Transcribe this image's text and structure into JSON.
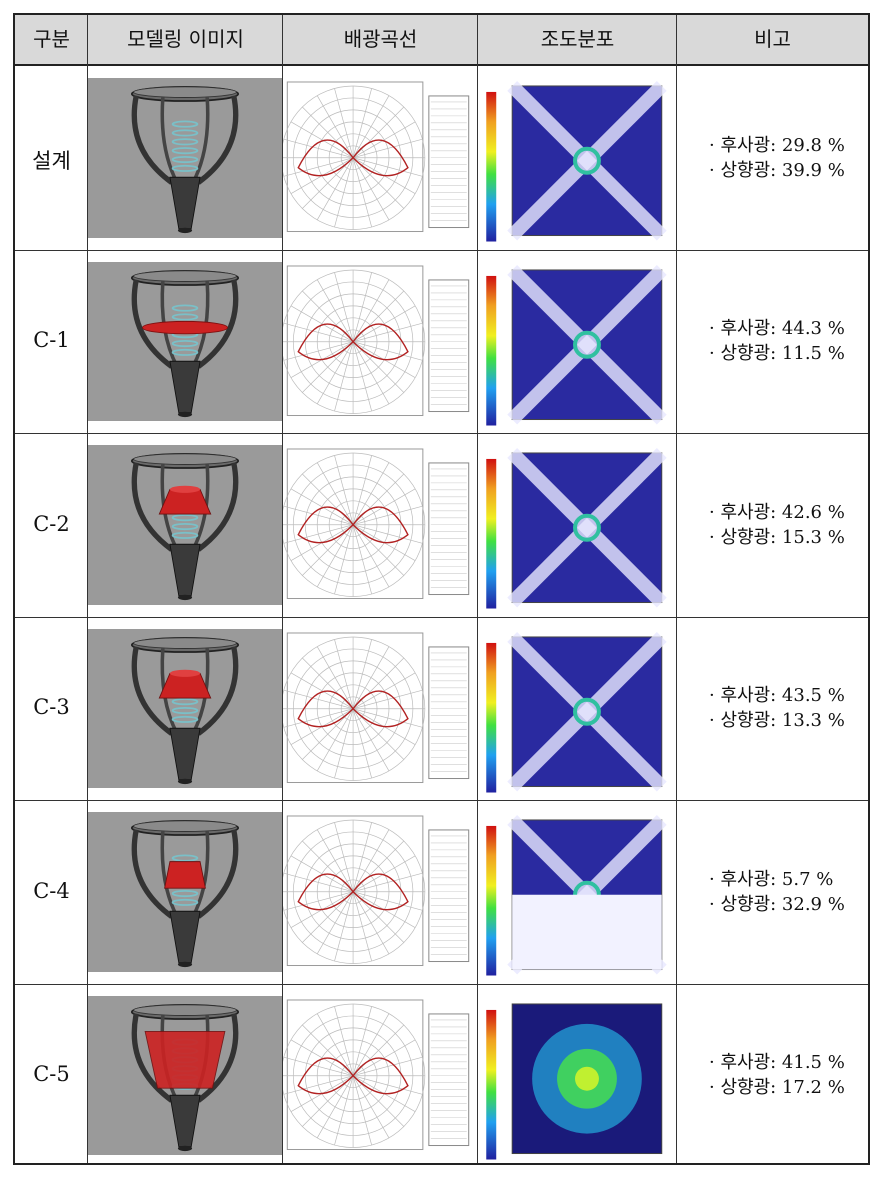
{
  "headers": {
    "category": "구분",
    "model": "모델링 이미지",
    "distribution": "배광곡선",
    "illuminance": "조도분포",
    "remark": "비고"
  },
  "rows": [
    {
      "label": "설계",
      "back_light": "· 후사광: 29.8 %",
      "up_light": "· 상향광: 39.9 %",
      "shade": "none"
    },
    {
      "label": "C-1",
      "back_light": "· 후사광: 44.3 %",
      "up_light": "· 상향광: 11.5 %",
      "shade": "disc"
    },
    {
      "label": "C-2",
      "back_light": "· 후사광: 42.6 %",
      "up_light": "· 상향광: 15.3 %",
      "shade": "cone"
    },
    {
      "label": "C-3",
      "back_light": "· 후사광: 43.5 %",
      "up_light": "· 상향광: 13.3 %",
      "shade": "cone"
    },
    {
      "label": "C-4",
      "back_light": "· 후사광: 5.7 %",
      "up_light": "· 상향광: 32.9 %",
      "shade": "half"
    },
    {
      "label": "C-5",
      "back_light": "· 후사광: 41.5 %",
      "up_light": "· 상향광: 17.2 %",
      "shade": "large"
    }
  ],
  "colors": {
    "header_bg": "#d9d9d9",
    "model_bg": "#9a9a9a",
    "shade_red": "#cc2222",
    "polar_curve": "#b22222",
    "map_dark": "#1a1a7a"
  }
}
